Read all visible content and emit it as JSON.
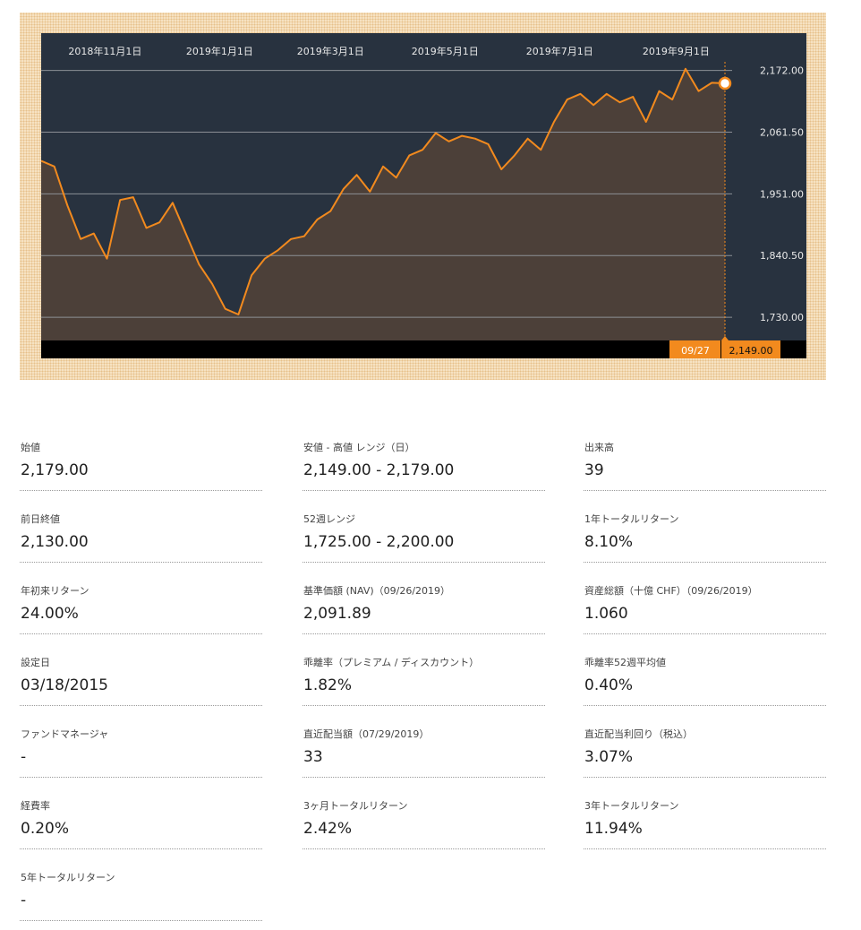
{
  "chart_data": {
    "type": "area",
    "x_ticks": [
      "2018年11月1日",
      "2019年1月1日",
      "2019年3月1日",
      "2019年5月1日",
      "2019年7月1日",
      "2019年9月1日"
    ],
    "y_ticks": [
      "2,172.00",
      "2,061.50",
      "1,951.00",
      "1,840.50",
      "1,730.00"
    ],
    "ylim": [
      1690,
      2210
    ],
    "grid": true,
    "last_date": "09/27",
    "last_value": "2,149.00",
    "line_color": "#f28a1e",
    "fill_color": "#4c4039",
    "background_color": "#28323f",
    "x": [
      "2018-09-28",
      "2018-10-05",
      "2018-10-12",
      "2018-10-19",
      "2018-10-26",
      "2018-11-02",
      "2018-11-09",
      "2018-11-16",
      "2018-11-23",
      "2018-11-30",
      "2018-12-07",
      "2018-12-14",
      "2018-12-21",
      "2018-12-28",
      "2019-01-04",
      "2019-01-11",
      "2019-01-18",
      "2019-01-25",
      "2019-02-01",
      "2019-02-08",
      "2019-02-15",
      "2019-02-22",
      "2019-03-01",
      "2019-03-08",
      "2019-03-15",
      "2019-03-22",
      "2019-03-29",
      "2019-04-05",
      "2019-04-12",
      "2019-04-19",
      "2019-04-26",
      "2019-05-03",
      "2019-05-10",
      "2019-05-17",
      "2019-05-24",
      "2019-05-31",
      "2019-06-07",
      "2019-06-14",
      "2019-06-21",
      "2019-06-28",
      "2019-07-05",
      "2019-07-12",
      "2019-07-19",
      "2019-07-26",
      "2019-08-02",
      "2019-08-09",
      "2019-08-16",
      "2019-08-23",
      "2019-08-30",
      "2019-09-06",
      "2019-09-13",
      "2019-09-20",
      "2019-09-27"
    ],
    "values": [
      2010,
      2000,
      1930,
      1870,
      1880,
      1835,
      1940,
      1945,
      1890,
      1900,
      1935,
      1880,
      1825,
      1790,
      1745,
      1735,
      1805,
      1835,
      1850,
      1870,
      1875,
      1905,
      1920,
      1960,
      1985,
      1955,
      2000,
      1980,
      2020,
      2030,
      2060,
      2045,
      2055,
      2050,
      2040,
      1995,
      2020,
      2050,
      2030,
      2080,
      2120,
      2130,
      2110,
      2130,
      2115,
      2125,
      2080,
      2135,
      2120,
      2175,
      2135,
      2150,
      2149
    ]
  }
}
